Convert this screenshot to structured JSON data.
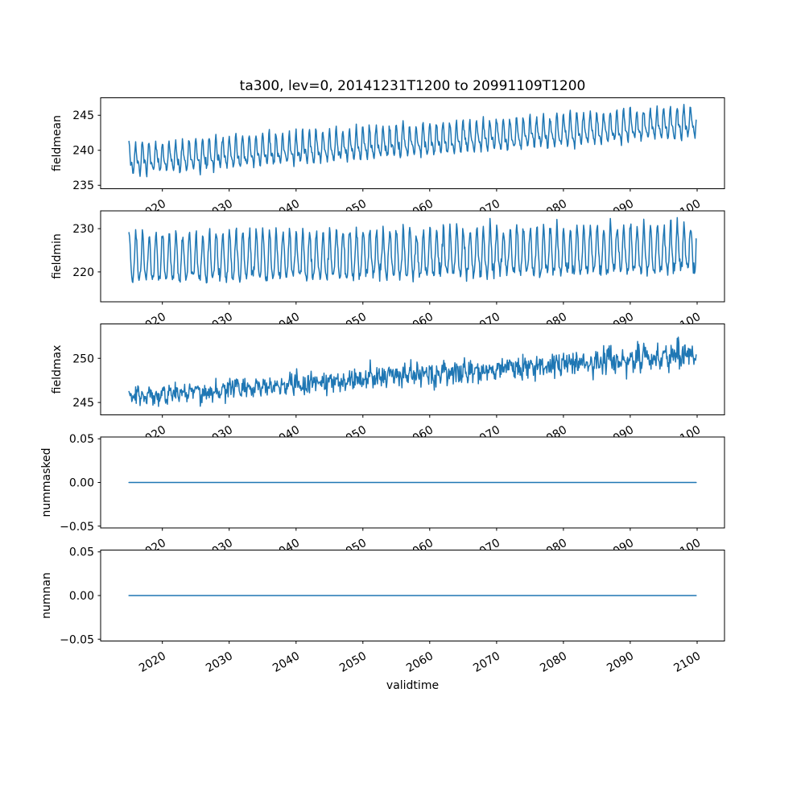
{
  "figure": {
    "title": "ta300, lev=0, 20141231T1200 to 20991109T1200",
    "xlabel": "validtime",
    "background_color": "#ffffff",
    "line_color": "#1f77b4",
    "axes_color": "#000000"
  },
  "chart_data": {
    "type": "line",
    "title": "ta300, lev=0, 20141231T1200 to 20991109T1200",
    "xlabel": "validtime",
    "x_start_label": "20141231T1200",
    "x_end_label": "20991109T1200",
    "x_range_years": [
      2015.0,
      2099.86
    ],
    "xlim": [
      2010.76,
      2104.1
    ],
    "x_ticks": [
      2020,
      2030,
      2040,
      2050,
      2060,
      2070,
      2080,
      2090,
      2100
    ],
    "x_tick_labels": [
      "2020",
      "2030",
      "2040",
      "2050",
      "2060",
      "2070",
      "2080",
      "2090",
      "2100"
    ],
    "x_tick_rotation_deg": 30,
    "points_per_year": 12,
    "grid": false,
    "legend": "none",
    "line_color": "#1f77b4",
    "seed": 20141231,
    "subplots": [
      {
        "ylabel": "fieldmean",
        "yticks": [
          235,
          240,
          245
        ],
        "ytick_labels": [
          "235",
          "240",
          "245"
        ],
        "ylim": [
          234.5,
          247.5
        ],
        "series": {
          "kind": "seasonal_trend",
          "description": "annual oscillation, roughly 236-241 in 2015 rising to 240.5-247 by 2099",
          "base": 238.5,
          "slope_per_year": 0.064,
          "annual_amp": 1.75,
          "annual_phase": 1.3,
          "semiannual_amp": 0.85,
          "semiannual_phase": 2.0,
          "noise_sd": 0.28,
          "noise_growth": 0
        }
      },
      {
        "ylabel": "fieldmin",
        "yticks": [
          220,
          230
        ],
        "ytick_labels": [
          "220",
          "230"
        ],
        "ylim": [
          213.1,
          234.1
        ],
        "series": {
          "kind": "seasonal_trend",
          "description": "annual oscillation, roughly 215-229 in 2015 rising slightly to 218-233 by 2099",
          "base": 222.6,
          "slope_per_year": 0.026,
          "annual_amp": 5.2,
          "annual_phase": 1.3,
          "semiannual_amp": 1.0,
          "semiannual_phase": 1.2,
          "noise_sd": 0.75,
          "noise_growth": 0.2
        }
      },
      {
        "ylabel": "fieldmax",
        "yticks": [
          245,
          250
        ],
        "ytick_labels": [
          "245",
          "250"
        ],
        "ylim": [
          243.6,
          253.9
        ],
        "series": {
          "kind": "seasonal_trend",
          "description": "noisy line rising from about 245.5 in 2015 to about 250.5 in 2099, spikes near 253",
          "base": 245.6,
          "slope_per_year": 0.058,
          "annual_amp": 0.3,
          "annual_phase": 1.0,
          "semiannual_amp": 0,
          "semiannual_phase": 0,
          "noise_sd": 0.55,
          "noise_growth": 0.35
        }
      },
      {
        "ylabel": "nummasked",
        "yticks": [
          -0.05,
          0.0,
          0.05
        ],
        "ytick_labels": [
          "−0.05",
          "0.00",
          "0.05"
        ],
        "ylim": [
          -0.052,
          0.052
        ],
        "series": {
          "kind": "constant",
          "value": 0.0,
          "description": "constant zero for the whole period"
        }
      },
      {
        "ylabel": "numnan",
        "yticks": [
          -0.05,
          0.0,
          0.05
        ],
        "ytick_labels": [
          "−0.05",
          "0.00",
          "0.05"
        ],
        "ylim": [
          -0.052,
          0.052
        ],
        "series": {
          "kind": "constant",
          "value": 0.0,
          "description": "constant zero for the whole period"
        }
      }
    ]
  }
}
